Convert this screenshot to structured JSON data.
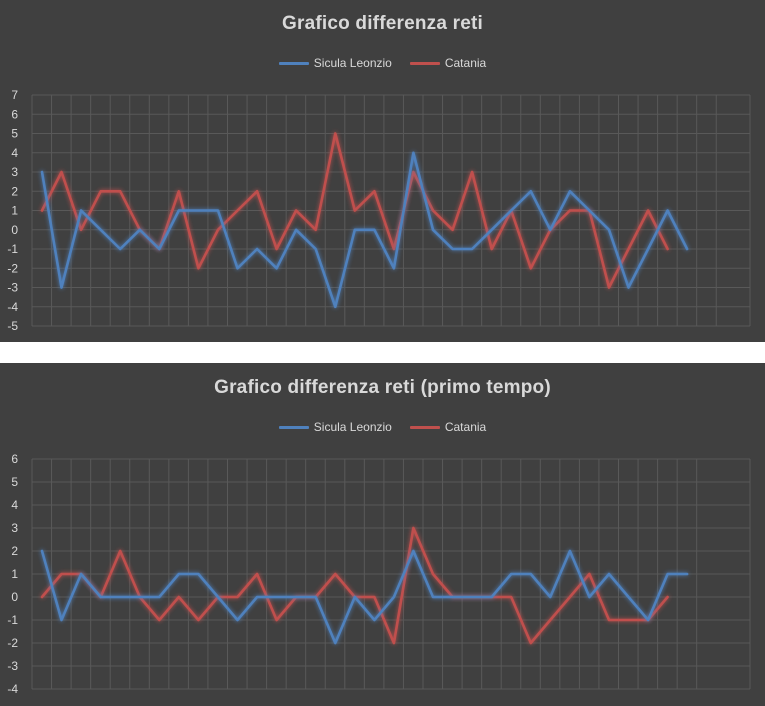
{
  "colors": {
    "background": "#404040",
    "grid": "#595959",
    "text": "#d9d9d9",
    "separator": "#ffffff"
  },
  "chart_data": [
    {
      "type": "line",
      "title": "Grafico differenza reti",
      "xlabel": "",
      "ylabel": "",
      "ylim": [
        -5,
        7
      ],
      "yticks": [
        "7",
        "6",
        "5",
        "4",
        "3",
        "2",
        "1",
        "0",
        "-1",
        "-2",
        "-3",
        "-4",
        "-5"
      ],
      "x_count": 36,
      "legend_position": "top",
      "grid": true,
      "series": [
        {
          "name": "Sicula Leonzio",
          "color": "#4f81bd",
          "values": [
            3,
            -3,
            1,
            0,
            -1,
            0,
            -1,
            1,
            1,
            1,
            -2,
            -1,
            -2,
            0,
            -1,
            -4,
            0,
            0,
            -2,
            4,
            0,
            -1,
            -1,
            0,
            1,
            2,
            0,
            2,
            1,
            0,
            -3,
            -1,
            1,
            -1
          ]
        },
        {
          "name": "Catania",
          "color": "#c0504d",
          "values": [
            1,
            3,
            0,
            2,
            2,
            0,
            -1,
            2,
            -2,
            0,
            1,
            2,
            -1,
            1,
            0,
            5,
            1,
            2,
            -1,
            3,
            1,
            0,
            3,
            -1,
            1,
            -2,
            0,
            1,
            1,
            -3,
            -1,
            1,
            -1
          ]
        }
      ]
    },
    {
      "type": "line",
      "title": "Grafico differenza reti (primo tempo)",
      "xlabel": "",
      "ylabel": "",
      "ylim": [
        -4,
        6
      ],
      "yticks": [
        "6",
        "5",
        "4",
        "3",
        "2",
        "1",
        "0",
        "-1",
        "-2",
        "-3",
        "-4"
      ],
      "x_count": 35,
      "legend_position": "top",
      "grid": true,
      "series": [
        {
          "name": "Sicula Leonzio",
          "color": "#4f81bd",
          "values": [
            2,
            -1,
            1,
            0,
            0,
            0,
            0,
            1,
            1,
            0,
            -1,
            0,
            0,
            0,
            0,
            -2,
            0,
            -1,
            0,
            2,
            0,
            0,
            0,
            0,
            1,
            1,
            0,
            2,
            0,
            1,
            0,
            -1,
            1,
            1
          ]
        },
        {
          "name": "Catania",
          "color": "#c0504d",
          "values": [
            0,
            1,
            1,
            0,
            2,
            0,
            -1,
            0,
            -1,
            0,
            0,
            1,
            -1,
            0,
            0,
            1,
            0,
            0,
            -2,
            3,
            1,
            0,
            0,
            0,
            0,
            -2,
            -1,
            0,
            1,
            -1,
            -1,
            -1,
            0
          ]
        }
      ]
    }
  ]
}
